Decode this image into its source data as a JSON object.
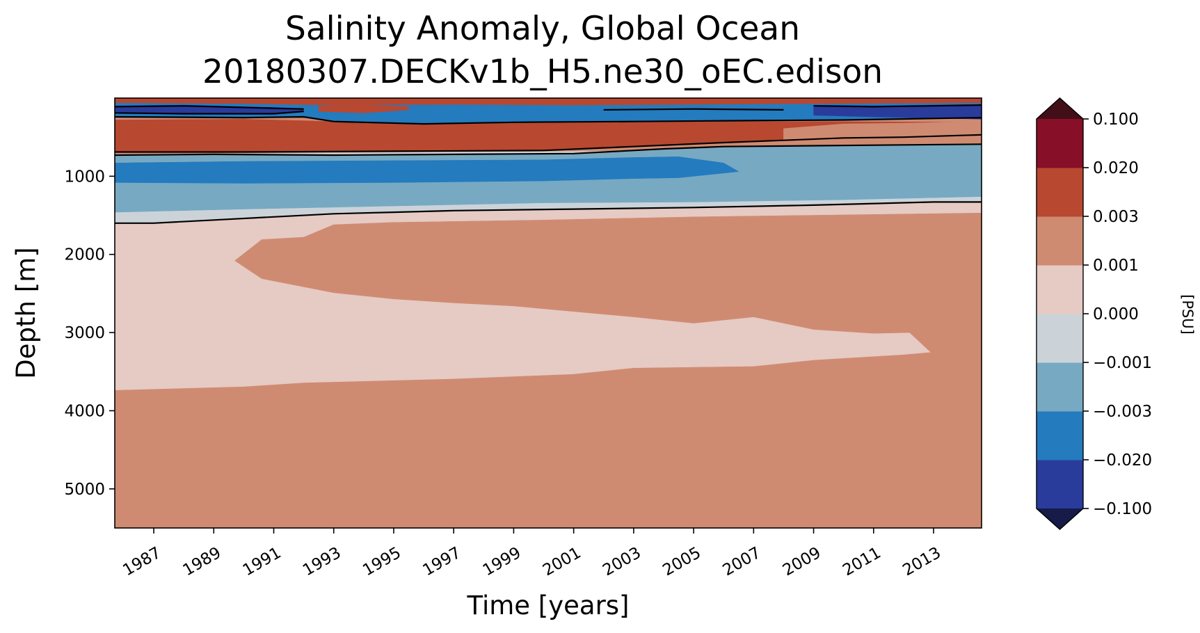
{
  "chart_data": {
    "type": "heatmap",
    "title_line1": "Salinity Anomaly, Global Ocean",
    "title_line2": "20180307.DECKv1b_H5.ne30_oEC.edison",
    "xlabel": "Time [years]",
    "ylabel": "Depth [m]",
    "xlim": [
      1985.7,
      2014.6
    ],
    "ylim": [
      5500,
      0
    ],
    "x_ticks": [
      1987,
      1989,
      1991,
      1993,
      1995,
      1997,
      1999,
      2001,
      2003,
      2005,
      2007,
      2009,
      2011,
      2013
    ],
    "y_ticks": [
      1000,
      2000,
      3000,
      4000,
      5000
    ],
    "colorbar": {
      "label": "[PSU]",
      "levels": [
        "-0.100",
        "-0.020",
        "-0.003",
        "-0.001",
        "0.000",
        "0.001",
        "0.003",
        "0.020",
        "0.100"
      ],
      "colors": [
        "#293c9c",
        "#247bbe",
        "#77a9c2",
        "#cbd3d9",
        "#e6cac4",
        "#cf8b72",
        "#b84830",
        "#880f28"
      ],
      "under_color": "#161b48",
      "over_color": "#420f18"
    },
    "bands": [
      {
        "name": "deep-positive",
        "color": "#cf8b72",
        "top": [
          [
            1985.7,
            3735
          ],
          [
            1990,
            3690
          ],
          [
            1992,
            3640
          ],
          [
            1997,
            3590
          ],
          [
            2001,
            3530
          ],
          [
            2003,
            3450
          ],
          [
            2007,
            3430
          ],
          [
            2009,
            3350
          ],
          [
            2012,
            3280
          ],
          [
            2012.9,
            3250
          ],
          [
            2014.6,
            3250
          ]
        ],
        "bottom": [
          [
            1985.7,
            5500
          ],
          [
            2014.6,
            5500
          ]
        ]
      },
      {
        "name": "slightly-positive-upper",
        "color": "#e6cac4",
        "top": [
          [
            1985.7,
            1600
          ],
          [
            1987,
            1600
          ],
          [
            1989,
            1560
          ],
          [
            1991,
            1520
          ],
          [
            1993,
            1480
          ],
          [
            1995,
            1460
          ],
          [
            1997,
            1440
          ],
          [
            2001,
            1420
          ],
          [
            2005,
            1400
          ],
          [
            2009,
            1370
          ],
          [
            2013,
            1330
          ],
          [
            2014.6,
            1330
          ]
        ],
        "bottom": [
          [
            1985.7,
            3735
          ],
          [
            1990,
            3690
          ],
          [
            1992,
            3640
          ],
          [
            1997,
            3590
          ],
          [
            2001,
            3530
          ],
          [
            2003,
            3450
          ],
          [
            2007,
            3430
          ],
          [
            2009,
            3350
          ],
          [
            2012,
            3280
          ],
          [
            2012.9,
            3250
          ],
          [
            2014.6,
            3250
          ]
        ]
      },
      {
        "name": "positive-tongue",
        "color": "#cf8b72",
        "top": [
          [
            1989.7,
            2080
          ],
          [
            1990.6,
            1810
          ],
          [
            1992,
            1780
          ],
          [
            1993,
            1620
          ],
          [
            1995,
            1590
          ],
          [
            2000,
            1560
          ],
          [
            2005,
            1520
          ],
          [
            2014.6,
            1470
          ]
        ],
        "bottom": [
          [
            1989.7,
            2080
          ],
          [
            1990.6,
            2310
          ],
          [
            1993,
            2490
          ],
          [
            1995,
            2570
          ],
          [
            1997,
            2620
          ],
          [
            1999,
            2660
          ],
          [
            2001,
            2730
          ],
          [
            2003,
            2800
          ],
          [
            2005,
            2880
          ],
          [
            2007,
            2800
          ],
          [
            2009,
            2960
          ],
          [
            2011,
            3010
          ],
          [
            2012.2,
            3000
          ],
          [
            2012.9,
            3250
          ],
          [
            2014.6,
            3250
          ]
        ]
      },
      {
        "name": "near-zero",
        "color": "#cbd3d9",
        "top": [
          [
            1985.7,
            720
          ],
          [
            2014.6,
            650
          ]
        ],
        "bottom": [
          [
            1985.7,
            1600
          ],
          [
            1987,
            1600
          ],
          [
            1989,
            1560
          ],
          [
            1991,
            1520
          ],
          [
            1993,
            1480
          ],
          [
            1995,
            1460
          ],
          [
            1997,
            1440
          ],
          [
            2001,
            1420
          ],
          [
            2005,
            1400
          ],
          [
            2009,
            1370
          ],
          [
            2013,
            1330
          ],
          [
            2014.6,
            1330
          ]
        ]
      },
      {
        "name": "slightly-negative",
        "color": "#77a9c2",
        "top": [
          [
            1985.7,
            730
          ],
          [
            1989,
            720
          ],
          [
            1993,
            730
          ],
          [
            1997,
            720
          ],
          [
            2001,
            710
          ],
          [
            2004,
            650
          ],
          [
            2006,
            620
          ],
          [
            2009,
            610
          ],
          [
            2014.6,
            590
          ]
        ],
        "bottom": [
          [
            1985.7,
            1460
          ],
          [
            1990,
            1420
          ],
          [
            1995,
            1380
          ],
          [
            2000,
            1340
          ],
          [
            2005,
            1330
          ],
          [
            2010,
            1300
          ],
          [
            2014.6,
            1260
          ]
        ]
      },
      {
        "name": "negative-core",
        "color": "#247bbe",
        "top": [
          [
            1985.7,
            830
          ],
          [
            1990,
            810
          ],
          [
            1995,
            800
          ],
          [
            2000,
            790
          ],
          [
            2003,
            760
          ],
          [
            2004.5,
            750
          ],
          [
            2006,
            830
          ]
        ],
        "bottom": [
          [
            1985.7,
            1080
          ],
          [
            1990,
            1090
          ],
          [
            1995,
            1080
          ],
          [
            2000,
            1060
          ],
          [
            2003,
            1030
          ],
          [
            2004.5,
            1020
          ],
          [
            2006,
            960
          ],
          [
            2006.5,
            940
          ]
        ]
      },
      {
        "name": "upper-positive",
        "color": "#b84830",
        "top": [
          [
            1985.7,
            280
          ],
          [
            1990,
            270
          ],
          [
            1995,
            320
          ],
          [
            2000,
            320
          ],
          [
            2005,
            300
          ],
          [
            2009,
            300
          ],
          [
            2014.6,
            310
          ]
        ],
        "bottom": [
          [
            1985.7,
            690
          ],
          [
            1990,
            690
          ],
          [
            1995,
            680
          ],
          [
            2000,
            670
          ],
          [
            2003,
            620
          ],
          [
            2006,
            570
          ],
          [
            2008,
            540
          ],
          [
            2010,
            510
          ],
          [
            2012,
            500
          ],
          [
            2014.6,
            470
          ]
        ]
      },
      {
        "name": "upper-slightly-positive",
        "color": "#cf8b72",
        "top": [
          [
            2008,
            390
          ],
          [
            2010,
            330
          ],
          [
            2012,
            320
          ],
          [
            2014.6,
            300
          ]
        ],
        "bottom": [
          [
            2008,
            540
          ],
          [
            2010,
            510
          ],
          [
            2012,
            500
          ],
          [
            2014.6,
            470
          ]
        ]
      },
      {
        "name": "surface-negative",
        "color": "#247bbe",
        "top": [
          [
            1985.7,
            60
          ],
          [
            1990,
            70
          ],
          [
            1993,
            90
          ],
          [
            1997,
            80
          ],
          [
            2001,
            90
          ],
          [
            2005,
            80
          ],
          [
            2009,
            70
          ],
          [
            2014.6,
            60
          ]
        ],
        "bottom": [
          [
            1985.7,
            230
          ],
          [
            1990,
            250
          ],
          [
            1992,
            240
          ],
          [
            1993,
            300
          ],
          [
            1996,
            330
          ],
          [
            1999,
            310
          ],
          [
            2003,
            300
          ],
          [
            2006,
            290
          ],
          [
            2010,
            280
          ],
          [
            2014.6,
            250
          ]
        ]
      },
      {
        "name": "surface-strong-negative",
        "color": "#293c9c",
        "top": [
          [
            1985.7,
            100
          ],
          [
            1988,
            90
          ],
          [
            1991,
            120
          ],
          [
            1992,
            140
          ]
        ],
        "bottom": [
          [
            1985.7,
            190
          ],
          [
            1988,
            200
          ],
          [
            1991,
            200
          ],
          [
            1992,
            170
          ]
        ]
      },
      {
        "name": "surface-strong-negative-late",
        "color": "#293c9c",
        "top": [
          [
            2009,
            90
          ],
          [
            2011,
            100
          ],
          [
            2014.6,
            80
          ]
        ],
        "bottom": [
          [
            2009,
            220
          ],
          [
            2011,
            240
          ],
          [
            2014.6,
            270
          ]
        ]
      },
      {
        "name": "surface-positive",
        "color": "#b84830",
        "top": [
          [
            1985.7,
            0
          ],
          [
            2014.6,
            0
          ]
        ],
        "bottom": [
          [
            1985.7,
            60
          ],
          [
            1990,
            70
          ],
          [
            1993,
            90
          ],
          [
            1997,
            80
          ],
          [
            2001,
            90
          ],
          [
            2005,
            80
          ],
          [
            2009,
            70
          ],
          [
            2014.6,
            60
          ]
        ]
      },
      {
        "name": "surface-positive-patch",
        "color": "#b84830",
        "top": [
          [
            1992.5,
            100
          ],
          [
            1994,
            90
          ],
          [
            1995.5,
            110
          ]
        ],
        "bottom": [
          [
            1992.5,
            170
          ],
          [
            1994,
            190
          ],
          [
            1995.5,
            150
          ]
        ]
      }
    ],
    "contours": [
      [
        [
          1985.7,
          1600
        ],
        [
          1987,
          1600
        ],
        [
          1989,
          1560
        ],
        [
          1991,
          1520
        ],
        [
          1993,
          1480
        ],
        [
          1995,
          1460
        ],
        [
          1997,
          1440
        ],
        [
          2001,
          1420
        ],
        [
          2005,
          1400
        ],
        [
          2009,
          1370
        ],
        [
          2013,
          1330
        ],
        [
          2014.6,
          1330
        ]
      ],
      [
        [
          1985.7,
          730
        ],
        [
          1989,
          720
        ],
        [
          1993,
          730
        ],
        [
          1997,
          720
        ],
        [
          2001,
          710
        ],
        [
          2004,
          650
        ],
        [
          2006,
          620
        ],
        [
          2009,
          610
        ],
        [
          2014.6,
          590
        ]
      ],
      [
        [
          1985.7,
          690
        ],
        [
          1990,
          690
        ],
        [
          1995,
          680
        ],
        [
          2000,
          670
        ],
        [
          2003,
          620
        ],
        [
          2006,
          570
        ],
        [
          2008,
          540
        ],
        [
          2010,
          510
        ],
        [
          2012,
          500
        ],
        [
          2014.6,
          470
        ]
      ],
      [
        [
          1985.7,
          240
        ],
        [
          1990,
          250
        ],
        [
          1992,
          240
        ],
        [
          1993,
          300
        ],
        [
          1996,
          330
        ],
        [
          1999,
          310
        ],
        [
          2003,
          300
        ],
        [
          2006,
          290
        ],
        [
          2010,
          280
        ],
        [
          2014.6,
          250
        ]
      ],
      [
        [
          1985.7,
          110
        ],
        [
          1988,
          100
        ],
        [
          1991,
          130
        ],
        [
          1992,
          140
        ]
      ],
      [
        [
          1985.7,
          190
        ],
        [
          1988,
          200
        ],
        [
          1991,
          200
        ],
        [
          1992,
          170
        ]
      ],
      [
        [
          2009,
          100
        ],
        [
          2011,
          110
        ],
        [
          2014.6,
          90
        ]
      ],
      [
        [
          2002,
          150
        ],
        [
          2005,
          140
        ],
        [
          2008,
          150
        ]
      ]
    ]
  }
}
